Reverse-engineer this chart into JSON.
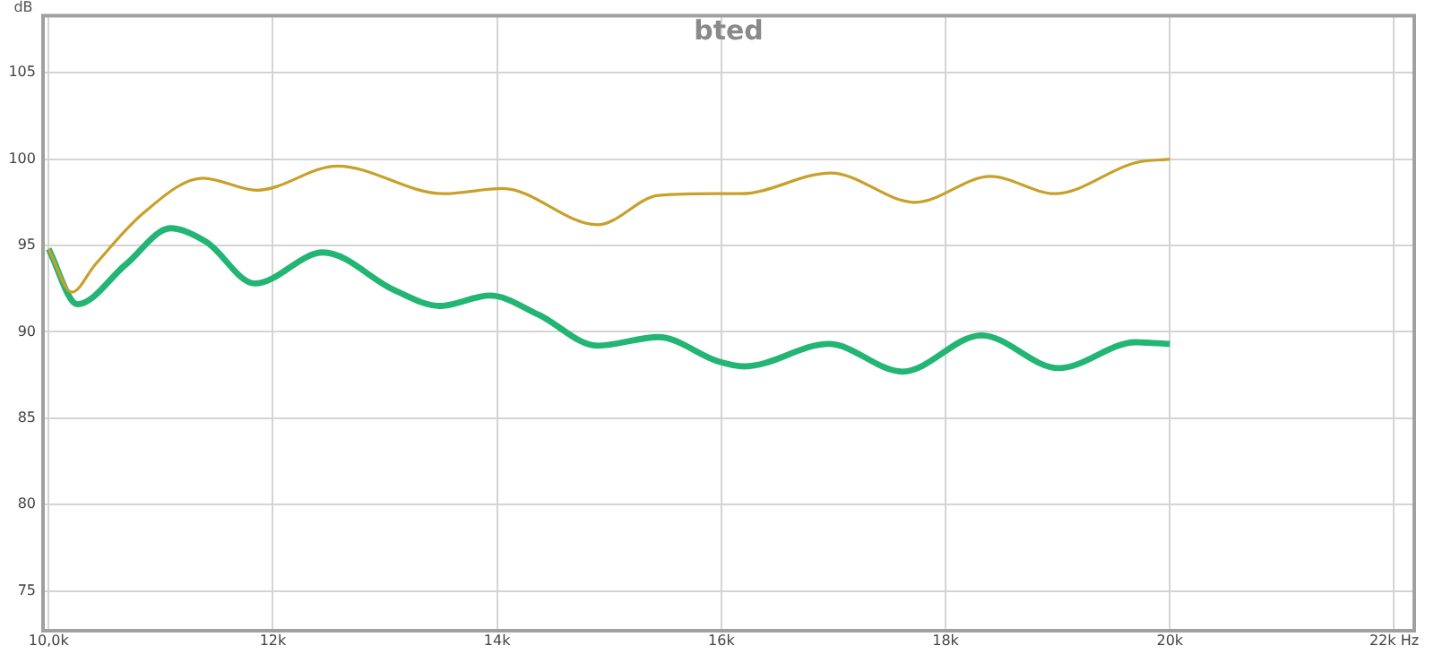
{
  "chart_data": {
    "type": "line",
    "title": "bted",
    "ylabel": "dB",
    "xlim": [
      9950,
      22180
    ],
    "ylim": [
      72.7,
      108.3
    ],
    "xticks": [
      {
        "value": 10000,
        "label": "10,0k"
      },
      {
        "value": 12000,
        "label": "12k"
      },
      {
        "value": 14000,
        "label": "14k"
      },
      {
        "value": 16000,
        "label": "16k"
      },
      {
        "value": 18000,
        "label": "18k"
      },
      {
        "value": 20000,
        "label": "20k"
      },
      {
        "value": 22000,
        "label": "22k Hz"
      }
    ],
    "yticks": [
      75,
      80,
      85,
      90,
      95,
      100,
      105
    ],
    "grid": true,
    "legend": false,
    "marker": "none",
    "line_style": "solid",
    "series": [
      {
        "color": "#c8a02a",
        "x": [
          10000,
          10208,
          10416,
          10848,
          11376,
          11856,
          12576,
          13520,
          14048,
          14896,
          15440,
          15968,
          16176,
          16976,
          17728,
          18400,
          18976,
          19696,
          20000
        ],
        "values": [
          94.8,
          92.3,
          93.9,
          96.9,
          98.9,
          98.2,
          99.6,
          98.0,
          98.3,
          96.2,
          97.9,
          98.0,
          98.0,
          99.2,
          97.5,
          99.0,
          98.0,
          99.8,
          100.0
        ]
      },
      {
        "color": "#22b573",
        "x": [
          10000,
          10256,
          10688,
          11088,
          11408,
          11840,
          12448,
          13088,
          13488,
          13936,
          14368,
          14896,
          15440,
          15968,
          16208,
          16960,
          17616,
          18320,
          19008,
          19696,
          20000
        ],
        "values": [
          94.8,
          91.6,
          93.9,
          96.0,
          95.2,
          92.8,
          94.6,
          92.4,
          91.5,
          92.1,
          91.0,
          89.2,
          89.7,
          88.3,
          88.0,
          89.3,
          87.7,
          89.8,
          87.9,
          89.4,
          89.3
        ]
      }
    ]
  }
}
